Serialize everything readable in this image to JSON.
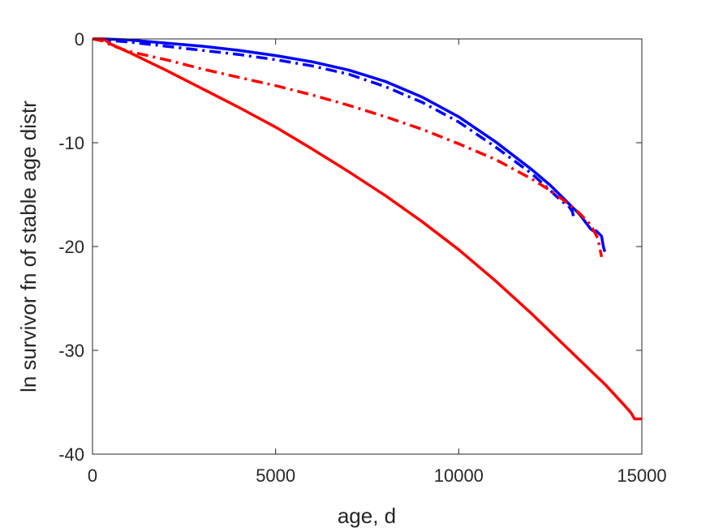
{
  "chart_data": {
    "type": "line",
    "title": "",
    "xlabel": "age, d",
    "ylabel": "ln survivor fn of stable age distr",
    "xlim": [
      0,
      15000
    ],
    "ylim": [
      -40,
      0
    ],
    "xticks": [
      0,
      5000,
      10000,
      15000
    ],
    "xtick_labels": [
      "0",
      "5000",
      "10000",
      "15000"
    ],
    "yticks": [
      0,
      -10,
      -20,
      -30,
      -40
    ],
    "ytick_labels": [
      "0",
      "-10",
      "-20",
      "-30",
      "-40"
    ],
    "grid": false,
    "legend": "none",
    "series": [
      {
        "color": "#0000ff",
        "style": "solid",
        "x": [
          0,
          300,
          1000,
          2000,
          3000,
          4000,
          5000,
          6000,
          7000,
          8000,
          9000,
          10000,
          11000,
          12000,
          12500,
          12900,
          13300,
          13600,
          13680,
          13760,
          13900,
          13950,
          13990
        ],
        "y": [
          0,
          0,
          -0.1,
          -0.4,
          -0.7,
          -1.1,
          -1.6,
          -2.2,
          -3.0,
          -4.1,
          -5.6,
          -7.5,
          -9.9,
          -12.6,
          -14.1,
          -15.5,
          -16.9,
          -18.3,
          -18.5,
          -18.5,
          -19.0,
          -20.0,
          -20.5
        ]
      },
      {
        "color": "#0000ff",
        "style": "dashdot",
        "x": [
          0,
          300,
          1000,
          2000,
          3000,
          4000,
          5000,
          6000,
          7000,
          8000,
          9000,
          10000,
          11000,
          12000,
          12500,
          12800,
          13000,
          13100,
          13150,
          13200
        ],
        "y": [
          0,
          -0.1,
          -0.3,
          -0.7,
          -1.1,
          -1.5,
          -2.0,
          -2.6,
          -3.4,
          -4.6,
          -6.1,
          -8.0,
          -10.4,
          -13.0,
          -14.6,
          -15.6,
          -16.1,
          -16.6,
          -17.3,
          -17.3
        ]
      },
      {
        "color": "#ff0000",
        "style": "dashdot",
        "x": [
          0,
          300,
          500,
          1000,
          2000,
          3000,
          4000,
          5000,
          6000,
          7000,
          8000,
          9000,
          10000,
          11000,
          12000,
          12500,
          13000,
          13300,
          13600,
          13800,
          13900
        ],
        "y": [
          0,
          -0.2,
          -0.6,
          -1.2,
          -2.0,
          -2.9,
          -3.7,
          -4.5,
          -5.4,
          -6.4,
          -7.5,
          -8.7,
          -10.1,
          -11.6,
          -13.5,
          -14.6,
          -15.9,
          -16.8,
          -17.9,
          -19.2,
          -21.0
        ]
      },
      {
        "color": "#ff0000",
        "style": "solid",
        "x": [
          0,
          300,
          500,
          1000,
          2000,
          3000,
          4000,
          5000,
          6000,
          7000,
          8000,
          9000,
          10000,
          11000,
          12000,
          13000,
          14000,
          14500,
          14700,
          14800,
          14900,
          15000
        ],
        "y": [
          0,
          0,
          -0.5,
          -1.3,
          -3.0,
          -4.8,
          -6.6,
          -8.5,
          -10.6,
          -12.8,
          -15.1,
          -17.6,
          -20.3,
          -23.3,
          -26.5,
          -29.9,
          -33.3,
          -35.2,
          -36.0,
          -36.6,
          -36.6,
          -36.6
        ]
      }
    ]
  }
}
